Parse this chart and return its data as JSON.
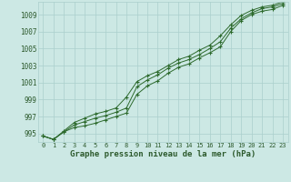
{
  "hours": [
    0,
    1,
    2,
    3,
    4,
    5,
    6,
    7,
    8,
    9,
    10,
    11,
    12,
    13,
    14,
    15,
    16,
    17,
    18,
    19,
    20,
    21,
    22,
    23
  ],
  "line1": [
    994.7,
    994.3,
    995.2,
    995.7,
    995.9,
    996.2,
    996.6,
    997.0,
    997.4,
    999.6,
    1000.6,
    1001.2,
    1002.1,
    1002.8,
    1003.2,
    1003.9,
    1004.5,
    1005.2,
    1007.0,
    1008.3,
    1009.0,
    1009.4,
    1009.6,
    1010.1
  ],
  "line2": [
    994.7,
    994.3,
    995.2,
    996.0,
    996.4,
    996.8,
    997.1,
    997.5,
    998.0,
    1000.5,
    1001.3,
    1001.9,
    1002.7,
    1003.3,
    1003.7,
    1004.3,
    1005.0,
    1005.8,
    1007.4,
    1008.5,
    1009.2,
    1009.7,
    1009.9,
    1010.3
  ],
  "line3": [
    994.7,
    994.3,
    995.3,
    996.3,
    996.8,
    997.3,
    997.6,
    998.0,
    999.3,
    1001.1,
    1001.8,
    1002.3,
    1003.0,
    1003.7,
    1004.1,
    1004.8,
    1005.4,
    1006.5,
    1007.8,
    1008.9,
    1009.5,
    1009.9,
    1010.1,
    1010.5
  ],
  "line_color": "#2d6a2d",
  "bg_color": "#cce8e4",
  "grid_color": "#aacfcc",
  "text_color": "#2d5a2d",
  "xlabel": "Graphe pression niveau de la mer (hPa)",
  "ylim": [
    994.0,
    1010.5
  ],
  "xlim": [
    -0.5,
    23.5
  ],
  "yticks": [
    995,
    997,
    999,
    1001,
    1003,
    1005,
    1007,
    1009
  ],
  "xticks": [
    0,
    1,
    2,
    3,
    4,
    5,
    6,
    7,
    8,
    9,
    10,
    11,
    12,
    13,
    14,
    15,
    16,
    17,
    18,
    19,
    20,
    21,
    22,
    23
  ]
}
